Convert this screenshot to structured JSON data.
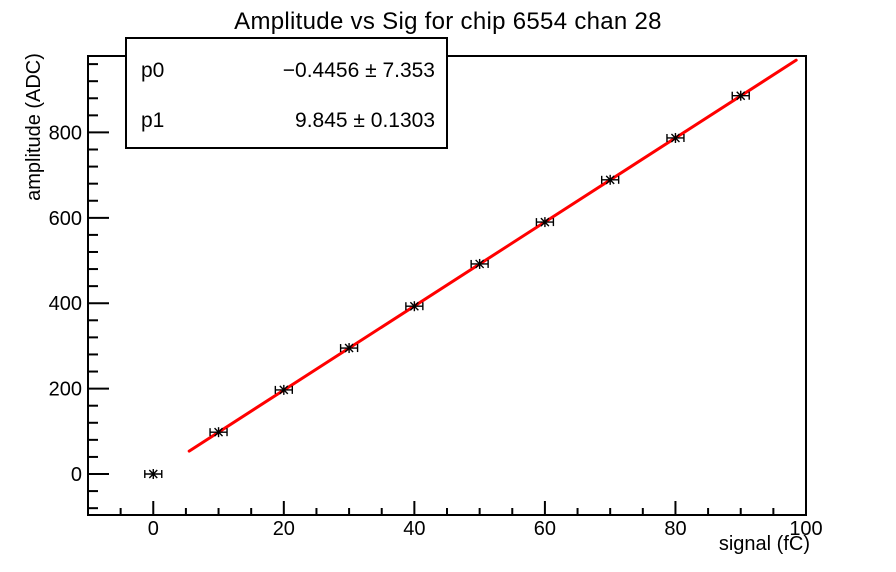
{
  "title": "Amplitude vs Sig for chip 6554 chan 28",
  "stats_box": {
    "rows": [
      {
        "name": "p0",
        "value": "−0.4456 ± 7.353"
      },
      {
        "name": "p1",
        "value": "9.845 ± 0.1303"
      }
    ]
  },
  "chart_data": {
    "type": "scatter",
    "title": "Amplitude vs Sig for chip 6554 chan 28",
    "xlabel": "signal (fC)",
    "ylabel": "amplitude (ADC)",
    "xlim": [
      -10,
      100
    ],
    "ylim": [
      -96,
      979
    ],
    "xticks": [
      0,
      20,
      40,
      60,
      80,
      100
    ],
    "yticks": [
      0,
      200,
      400,
      600,
      800
    ],
    "x_minor_step": 5,
    "y_minor_step": 40,
    "grid": false,
    "marker_style": "black asterisk with horizontal error bars",
    "points": [
      {
        "x": 0,
        "y": 0,
        "xerr": 1.3
      },
      {
        "x": 10,
        "y": 98,
        "xerr": 1.3
      },
      {
        "x": 20,
        "y": 197,
        "xerr": 1.3
      },
      {
        "x": 30,
        "y": 295,
        "xerr": 1.3
      },
      {
        "x": 40,
        "y": 393,
        "xerr": 1.3
      },
      {
        "x": 50,
        "y": 492,
        "xerr": 1.3
      },
      {
        "x": 60,
        "y": 590,
        "xerr": 1.3
      },
      {
        "x": 70,
        "y": 689,
        "xerr": 1.3
      },
      {
        "x": 80,
        "y": 787,
        "xerr": 1.3
      },
      {
        "x": 90,
        "y": 886,
        "xerr": 1.3
      }
    ],
    "fit": {
      "type": "linear",
      "p0": -0.4456,
      "p0_err": 7.353,
      "p1": 9.845,
      "p1_err": 0.1303,
      "x_start": 5.5,
      "x_end": 98.5,
      "color": "#ff0000"
    },
    "colors": {
      "fit_line": "#ff0000",
      "marker": "#000000",
      "frame": "#000000",
      "background": "#ffffff"
    }
  }
}
